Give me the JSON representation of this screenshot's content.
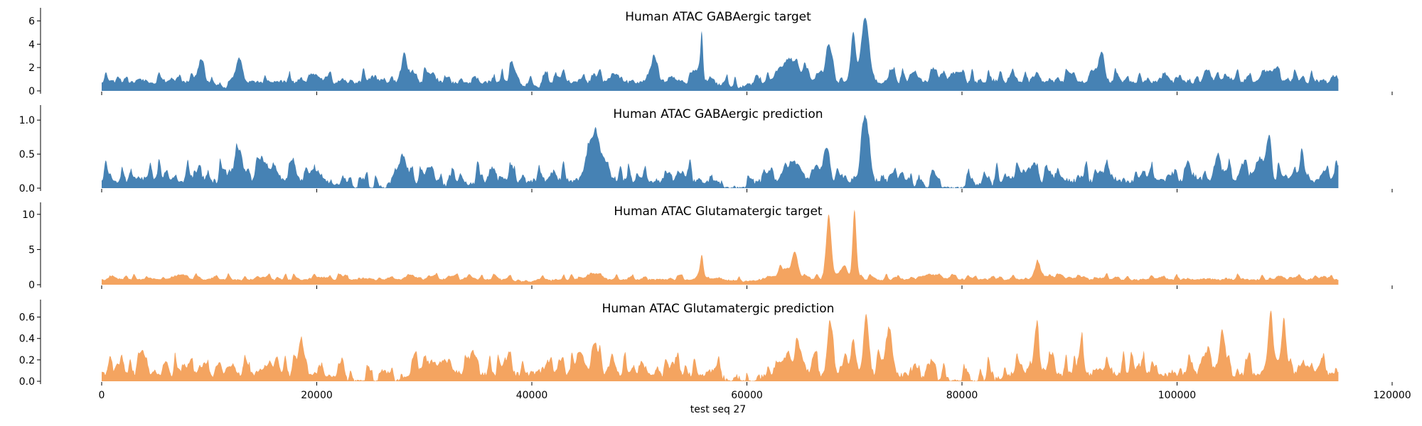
{
  "chart_data": {
    "type": "area",
    "x_range": [
      0,
      115000
    ],
    "xlim": [
      0,
      120000
    ],
    "x_ticks": [
      0,
      20000,
      40000,
      60000,
      80000,
      100000,
      120000
    ],
    "x_tick_labels": [
      "0",
      "20000",
      "40000",
      "60000",
      "80000",
      "100000",
      "120000"
    ],
    "xlabel": "test seq 27",
    "grid": false,
    "panels": [
      {
        "title": "Human ATAC GABAergic target",
        "color": "#4682b4",
        "ylim": [
          0,
          7.0
        ],
        "y_ticks": [
          0,
          2,
          4,
          6
        ],
        "y_tick_labels": [
          "0",
          "2",
          "4",
          "6"
        ],
        "baseline": 1.1,
        "noise": 0.65,
        "peaks": [
          {
            "x": 9200,
            "h": 1.9,
            "w": 250
          },
          {
            "x": 12800,
            "h": 1.5,
            "w": 300
          },
          {
            "x": 28200,
            "h": 1.4,
            "w": 300
          },
          {
            "x": 38200,
            "h": 1.2,
            "w": 250
          },
          {
            "x": 51200,
            "h": 1.3,
            "w": 400
          },
          {
            "x": 55800,
            "h": 4.0,
            "w": 120
          },
          {
            "x": 64000,
            "h": 2.0,
            "w": 800
          },
          {
            "x": 67600,
            "h": 3.3,
            "w": 300
          },
          {
            "x": 69900,
            "h": 4.0,
            "w": 200
          },
          {
            "x": 71000,
            "h": 5.6,
            "w": 350
          },
          {
            "x": 93000,
            "h": 1.8,
            "w": 300
          },
          {
            "x": 108500,
            "h": 1.0,
            "w": 500
          }
        ],
        "dips": [
          {
            "x": 11500,
            "d": 0.6,
            "w": 600
          },
          {
            "x": 40000,
            "d": 0.6,
            "w": 700
          },
          {
            "x": 58800,
            "d": 0.5,
            "w": 900
          }
        ]
      },
      {
        "title": "Human ATAC GABAergic prediction",
        "color": "#4682b4",
        "ylim": [
          0,
          1.2
        ],
        "y_ticks": [
          0,
          0.5,
          1.0
        ],
        "y_tick_labels": [
          "0.0",
          "0.5",
          "1.0"
        ],
        "baseline": 0.2,
        "noise": 0.17,
        "peaks": [
          {
            "x": 12500,
            "h": 0.25,
            "w": 500
          },
          {
            "x": 15500,
            "h": 0.2,
            "w": 600
          },
          {
            "x": 28000,
            "h": 0.25,
            "w": 250
          },
          {
            "x": 45400,
            "h": 0.5,
            "w": 400
          },
          {
            "x": 46000,
            "h": 0.35,
            "w": 300
          },
          {
            "x": 64200,
            "h": 0.25,
            "w": 600
          },
          {
            "x": 67400,
            "h": 0.4,
            "w": 300
          },
          {
            "x": 71000,
            "h": 0.95,
            "w": 350
          },
          {
            "x": 103800,
            "h": 0.35,
            "w": 300
          },
          {
            "x": 107700,
            "h": 0.35,
            "w": 400
          },
          {
            "x": 108600,
            "h": 0.6,
            "w": 200
          },
          {
            "x": 111600,
            "h": 0.45,
            "w": 200
          }
        ],
        "dips": [
          {
            "x": 25000,
            "d": 0.15,
            "w": 2000
          },
          {
            "x": 33000,
            "d": 0.08,
            "w": 1000
          },
          {
            "x": 59500,
            "d": 0.19,
            "w": 1300
          },
          {
            "x": 79000,
            "d": 0.18,
            "w": 2200
          }
        ]
      },
      {
        "title": "Human ATAC Glutamatergic target",
        "color": "#f4a460",
        "ylim": [
          0,
          11.5
        ],
        "y_ticks": [
          0,
          5,
          10
        ],
        "y_tick_labels": [
          "0",
          "5",
          "10"
        ],
        "baseline": 1.0,
        "noise": 0.5,
        "peaks": [
          {
            "x": 55800,
            "h": 3.2,
            "w": 150
          },
          {
            "x": 63500,
            "h": 1.5,
            "w": 600
          },
          {
            "x": 64500,
            "h": 3.5,
            "w": 250
          },
          {
            "x": 67600,
            "h": 8.5,
            "w": 250
          },
          {
            "x": 69000,
            "h": 1.5,
            "w": 400
          },
          {
            "x": 70000,
            "h": 9.8,
            "w": 170
          },
          {
            "x": 87000,
            "h": 2.0,
            "w": 300
          }
        ],
        "dips": [
          {
            "x": 40000,
            "d": 0.4,
            "w": 1200
          },
          {
            "x": 60000,
            "d": 0.3,
            "w": 900
          }
        ]
      },
      {
        "title": "Human ATAC Glutamatergic prediction",
        "color": "#f4a460",
        "ylim": [
          0,
          0.75
        ],
        "y_ticks": [
          0,
          0.2,
          0.4,
          0.6
        ],
        "y_tick_labels": [
          "0.0",
          "0.2",
          "0.4",
          "0.6"
        ],
        "baseline": 0.13,
        "noise": 0.12,
        "peaks": [
          {
            "x": 18500,
            "h": 0.2,
            "w": 250
          },
          {
            "x": 44500,
            "h": 0.2,
            "w": 400
          },
          {
            "x": 45900,
            "h": 0.3,
            "w": 250
          },
          {
            "x": 64500,
            "h": 0.15,
            "w": 700
          },
          {
            "x": 67700,
            "h": 0.5,
            "w": 200
          },
          {
            "x": 69900,
            "h": 0.35,
            "w": 200
          },
          {
            "x": 71100,
            "h": 0.55,
            "w": 250
          },
          {
            "x": 73200,
            "h": 0.3,
            "w": 300
          },
          {
            "x": 86900,
            "h": 0.35,
            "w": 250
          },
          {
            "x": 91000,
            "h": 0.25,
            "w": 200
          },
          {
            "x": 102700,
            "h": 0.2,
            "w": 400
          },
          {
            "x": 104300,
            "h": 0.3,
            "w": 250
          },
          {
            "x": 108700,
            "h": 0.52,
            "w": 200
          },
          {
            "x": 110000,
            "h": 0.4,
            "w": 200
          }
        ],
        "dips": [
          {
            "x": 25000,
            "d": 0.1,
            "w": 1800
          },
          {
            "x": 59500,
            "d": 0.12,
            "w": 1200
          },
          {
            "x": 80000,
            "d": 0.1,
            "w": 2000
          }
        ]
      }
    ]
  }
}
